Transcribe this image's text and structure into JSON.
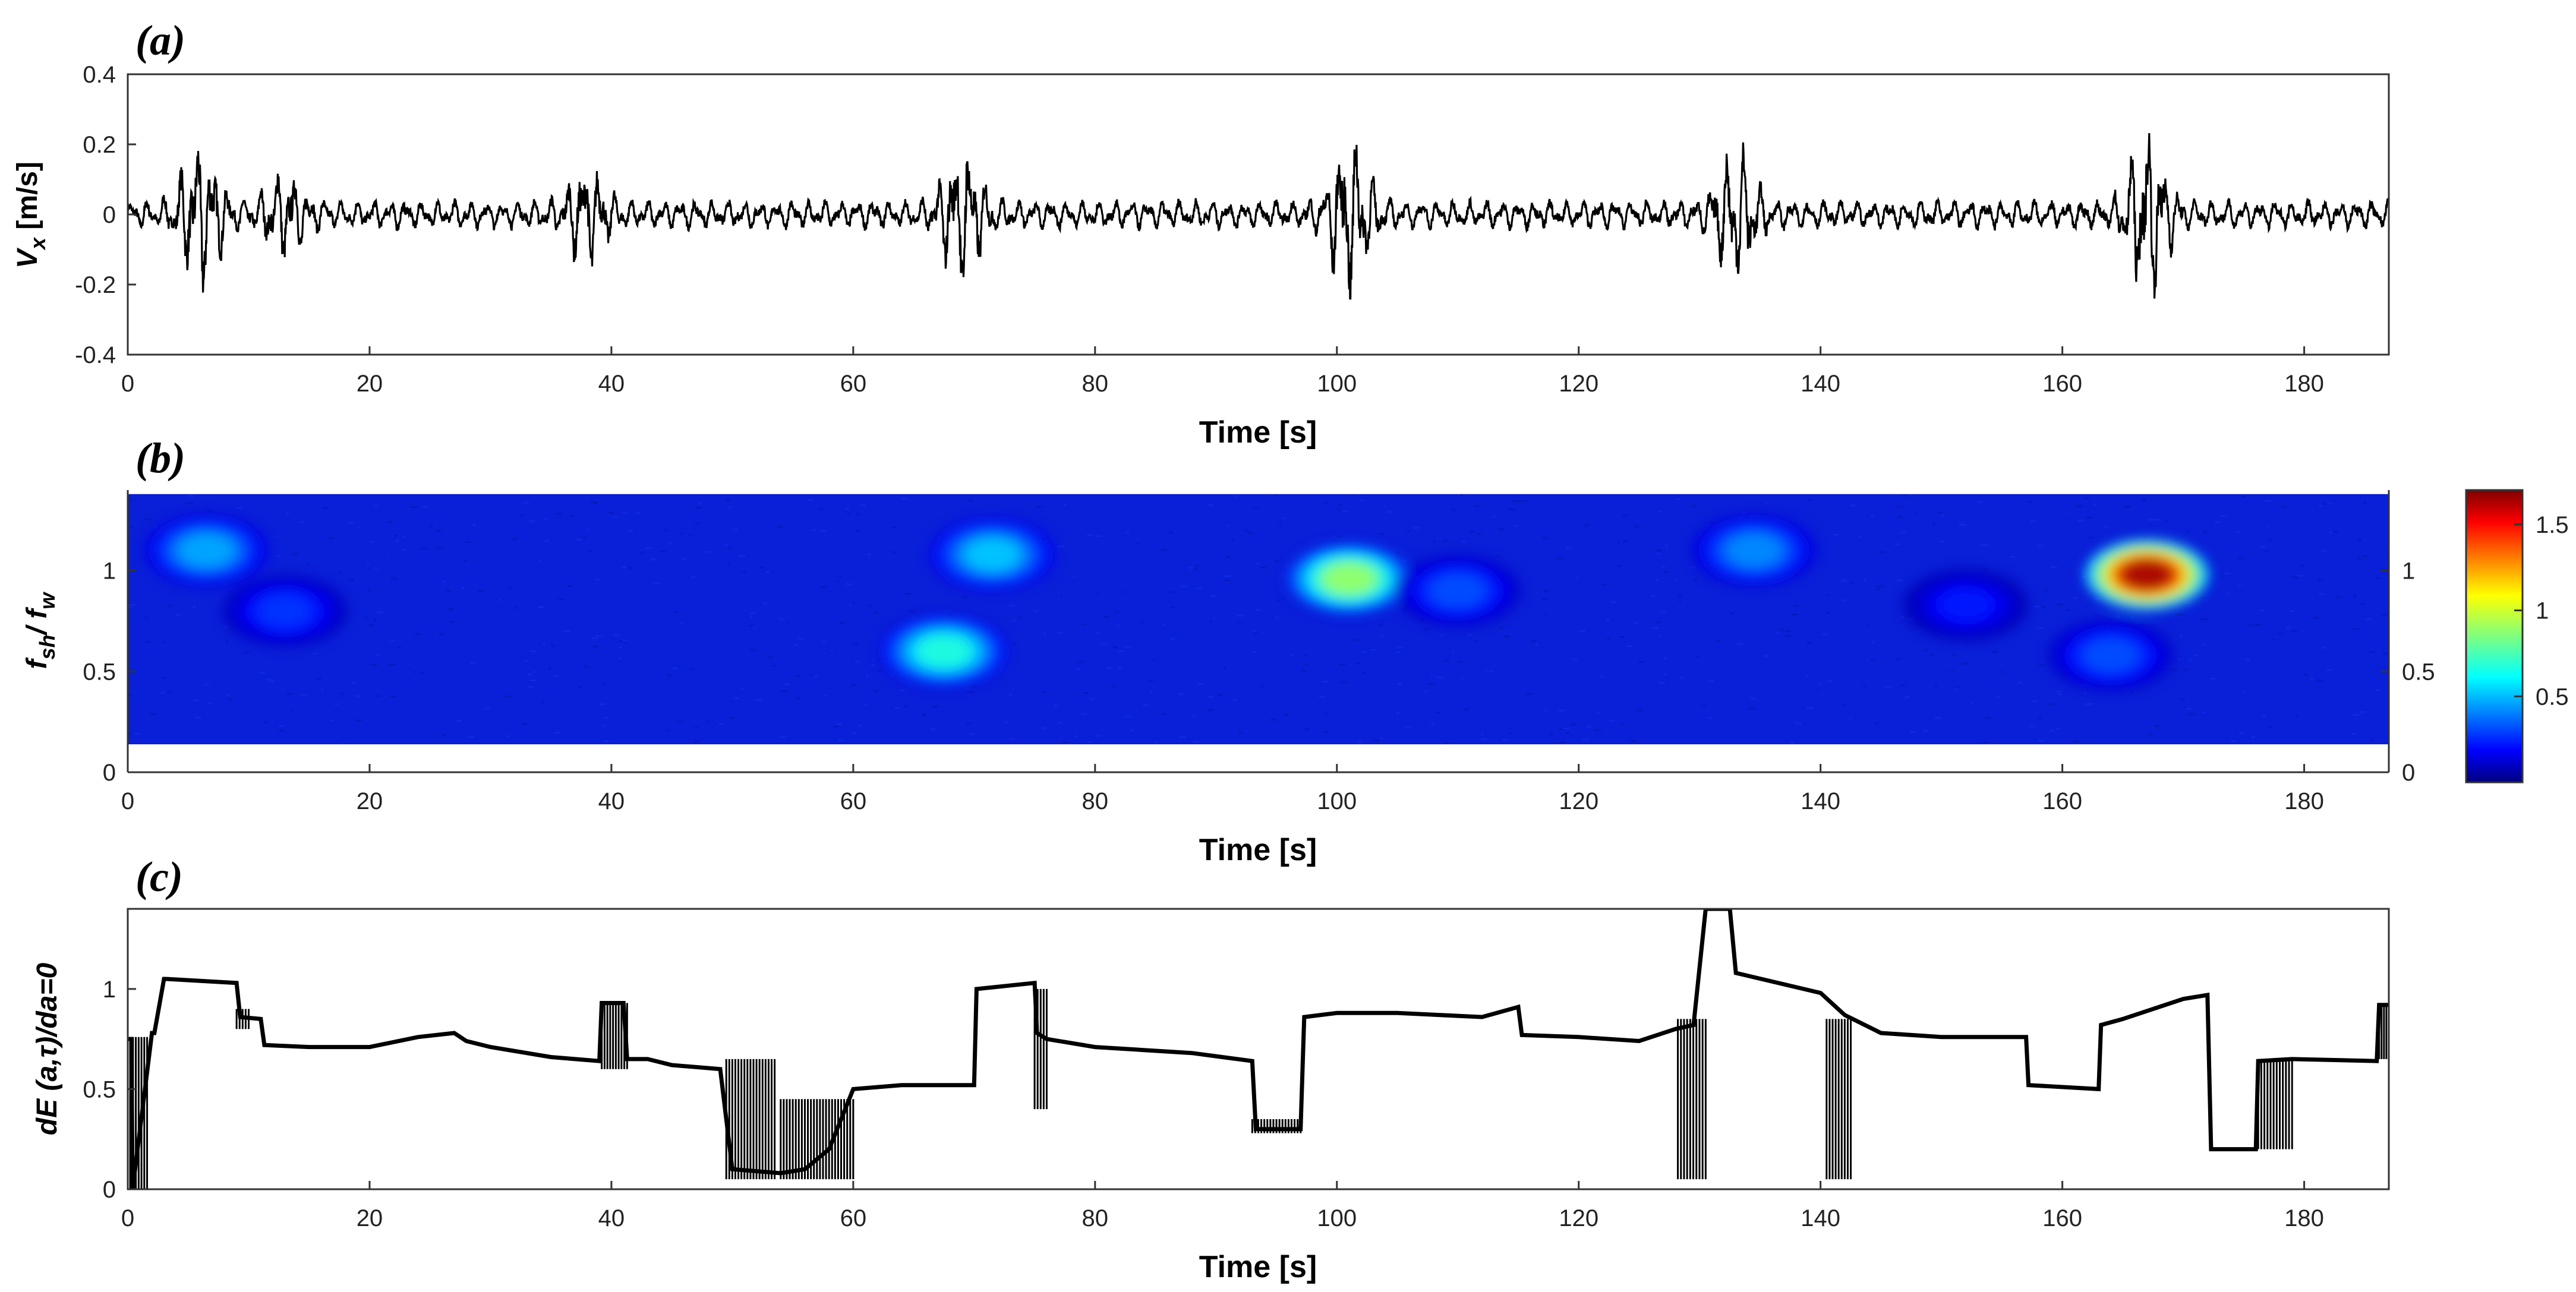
{
  "chart_data": [
    {
      "panel": "(a)",
      "type": "line",
      "title": "",
      "xlabel": "Time [s]",
      "ylabel_main": "V",
      "ylabel_sub": "x",
      "ylabel_unit": " [m/s]",
      "xlim": [
        0,
        187
      ],
      "ylim": [
        -0.4,
        0.4
      ],
      "xticks": [
        0,
        20,
        40,
        60,
        80,
        100,
        120,
        140,
        160,
        180
      ],
      "yticks": [
        -0.4,
        -0.2,
        0,
        0.2,
        0.4
      ],
      "ytick_labels": [
        "-0.4",
        "-0.2",
        "0",
        "0.2",
        "0.4"
      ],
      "wave_packets": [
        {
          "t": 6,
          "amp": 0.18
        },
        {
          "t": 13,
          "amp": 0.1
        },
        {
          "t": 38,
          "amp": 0.12
        },
        {
          "t": 69,
          "amp": 0.18
        },
        {
          "t": 101,
          "amp": 0.2
        },
        {
          "t": 133,
          "amp": 0.16
        },
        {
          "t": 167,
          "amp": 0.22
        }
      ],
      "background_amp": 0.04,
      "series": [
        {
          "name": "Vx",
          "color": "#000000"
        }
      ]
    },
    {
      "panel": "(b)",
      "type": "heatmap",
      "title": "",
      "xlabel": "Time [s]",
      "ylabel_main": "f",
      "ylabel_sub1": "sh",
      "ylabel_mid": "/ f",
      "ylabel_sub2": "w",
      "xlim": [
        0,
        187
      ],
      "ylim": [
        0,
        1.4
      ],
      "data_ylim": [
        0.13,
        1.38
      ],
      "xticks": [
        0,
        20,
        40,
        60,
        80,
        100,
        120,
        140,
        160,
        180
      ],
      "yticks": [
        0,
        0.5,
        1
      ],
      "ytick_labels": [
        "0",
        "0.5",
        "1"
      ],
      "right_ytick_labels": [
        "0",
        "0.5",
        "1"
      ],
      "colorbar": {
        "min": 0,
        "max": 1.7,
        "ticks": [
          0.5,
          1,
          1.5
        ],
        "tick_labels": [
          "0.5",
          "1",
          "1.5"
        ]
      },
      "blobs": [
        {
          "t": 6.5,
          "f": 1.1,
          "value": 0.5
        },
        {
          "t": 13,
          "f": 0.8,
          "value": 0.3
        },
        {
          "t": 67.5,
          "f": 0.6,
          "value": 0.7
        },
        {
          "t": 71.5,
          "f": 1.08,
          "value": 0.55
        },
        {
          "t": 101,
          "f": 0.96,
          "value": 0.9
        },
        {
          "t": 110,
          "f": 0.9,
          "value": 0.35
        },
        {
          "t": 134.5,
          "f": 1.1,
          "value": 0.45
        },
        {
          "t": 167,
          "f": 0.98,
          "value": 1.65
        },
        {
          "t": 164,
          "f": 0.58,
          "value": 0.35
        },
        {
          "t": 152,
          "f": 0.83,
          "value": 0.25
        }
      ]
    },
    {
      "panel": "(c)",
      "type": "line",
      "title": "",
      "xlabel": "Time [s]",
      "ylabel": "dE (a,τ)/da=0",
      "xlim": [
        0,
        187
      ],
      "ylim": [
        0,
        1.4
      ],
      "xticks": [
        0,
        20,
        40,
        60,
        80,
        100,
        120,
        140,
        160,
        180
      ],
      "yticks": [
        0,
        0.5,
        1
      ],
      "ytick_labels": [
        "0",
        "0.5",
        "1"
      ],
      "x": [
        0,
        0.3,
        0.4,
        2,
        2.2,
        3,
        3.2,
        9,
        9.3,
        11,
        11.3,
        15,
        20,
        24,
        27,
        28,
        30,
        35,
        39,
        39.2,
        41,
        41.3,
        43,
        45,
        49,
        50,
        54,
        56,
        58,
        60,
        64,
        70,
        70.2,
        75,
        75.2,
        76,
        80,
        88,
        93,
        93.3,
        97,
        97.3,
        100,
        105,
        112,
        115,
        115.3,
        120,
        125,
        128,
        129.5,
        130.5,
        131,
        132.5,
        133,
        140,
        142,
        145,
        150,
        157,
        157.2,
        163,
        163.2,
        165,
        170,
        172,
        172.3,
        176,
        176.2,
        179,
        186,
        186.2,
        187
      ],
      "y": [
        0.75,
        0.75,
        0.0,
        0.78,
        0.78,
        1.05,
        1.05,
        1.03,
        0.86,
        0.85,
        0.72,
        0.71,
        0.71,
        0.76,
        0.78,
        0.74,
        0.71,
        0.66,
        0.64,
        0.93,
        0.93,
        0.65,
        0.65,
        0.62,
        0.6,
        0.1,
        0.08,
        0.1,
        0.2,
        0.5,
        0.52,
        0.52,
        1.0,
        1.03,
        0.78,
        0.75,
        0.71,
        0.68,
        0.64,
        0.3,
        0.3,
        0.86,
        0.88,
        0.88,
        0.86,
        0.91,
        0.77,
        0.76,
        0.74,
        0.8,
        0.82,
        1.4,
        1.4,
        1.4,
        1.08,
        0.98,
        0.87,
        0.78,
        0.76,
        0.76,
        0.52,
        0.5,
        0.82,
        0.85,
        0.95,
        0.97,
        0.2,
        0.2,
        0.64,
        0.65,
        0.64,
        0.92,
        0.92
      ],
      "dense_bands": [
        {
          "t0": 0.2,
          "t1": 1.6,
          "ymin": 0.0,
          "ymax": 0.76
        },
        {
          "t0": 9.0,
          "t1": 10.0,
          "ymin": 0.8,
          "ymax": 0.9
        },
        {
          "t0": 39.2,
          "t1": 41.3,
          "ymin": 0.6,
          "ymax": 0.93
        },
        {
          "t0": 49.5,
          "t1": 53.5,
          "ymin": 0.05,
          "ymax": 0.65
        },
        {
          "t0": 54,
          "t1": 60,
          "ymin": 0.05,
          "ymax": 0.45
        },
        {
          "t0": 75.0,
          "t1": 76.0,
          "ymin": 0.4,
          "ymax": 1.0
        },
        {
          "t0": 93.0,
          "t1": 97.0,
          "ymin": 0.28,
          "ymax": 0.35
        },
        {
          "t0": 128.2,
          "t1": 130.5,
          "ymin": 0.05,
          "ymax": 0.85
        },
        {
          "t0": 140.5,
          "t1": 142.5,
          "ymin": 0.05,
          "ymax": 0.85
        },
        {
          "t0": 176.2,
          "t1": 179,
          "ymin": 0.2,
          "ymax": 0.65
        },
        {
          "t0": 186.2,
          "t1": 187,
          "ymin": 0.65,
          "ymax": 0.92
        }
      ],
      "series": [
        {
          "name": "dE",
          "color": "#000000"
        }
      ]
    }
  ]
}
